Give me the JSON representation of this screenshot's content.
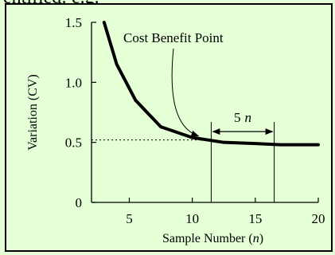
{
  "page": {
    "top_text_fragment": "entified: e.g."
  },
  "chart_data": {
    "type": "line",
    "xlabel_prefix": "Sample Number (",
    "xlabel_var": "n",
    "xlabel_suffix": ")",
    "ylabel": "Variation (CV)",
    "xlim": [
      2,
      20
    ],
    "ylim": [
      0,
      1.5
    ],
    "x_ticks": [
      5,
      10,
      15,
      20
    ],
    "y_ticks": [
      {
        "value": 0,
        "label": "0"
      },
      {
        "value": 0.5,
        "label": "0.5"
      },
      {
        "value": 1.0,
        "label": "1.0"
      },
      {
        "value": 1.5,
        "label": "1.5"
      }
    ],
    "series": [
      {
        "x": [
          3,
          4,
          5.5,
          7.5,
          10,
          12.5,
          15,
          17,
          18.5,
          20
        ],
        "y": [
          1.5,
          1.15,
          0.85,
          0.63,
          0.54,
          0.5,
          0.49,
          0.48,
          0.48,
          0.48
        ]
      }
    ],
    "cost_benefit_x": 11.5,
    "cost_benefit_y": 0.52,
    "span_end_x": 16.5,
    "annotations": {
      "cost_benefit_label": "Cost Benefit Point",
      "span_number": "5",
      "span_var": "n"
    },
    "colors": {
      "line": "#000000",
      "background": "#e5ffd6",
      "border": "#000000"
    }
  }
}
